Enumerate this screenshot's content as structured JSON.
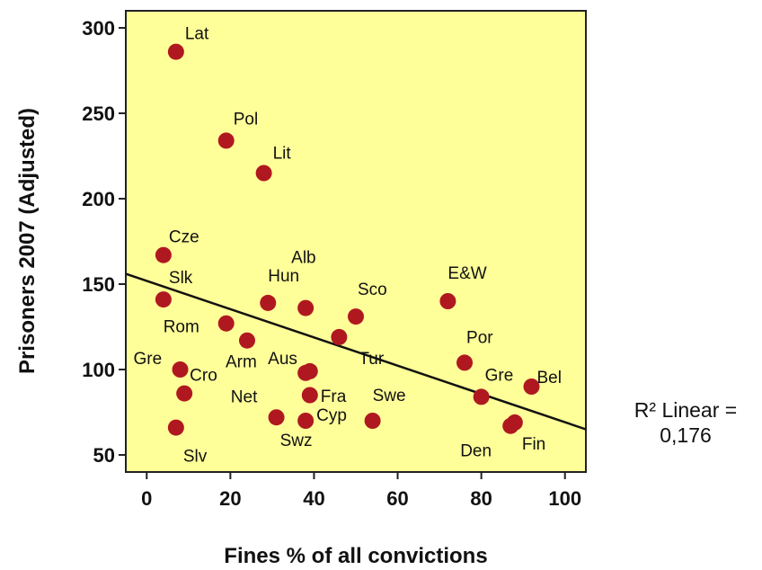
{
  "chart_data": {
    "type": "scatter",
    "xlabel": "Fines % of all convictions",
    "ylabel": "Prisoners 2007 (Adjusted)",
    "xlim": [
      -5,
      105
    ],
    "ylim": [
      40,
      310
    ],
    "x_ticks": [
      0,
      20,
      40,
      60,
      80,
      100
    ],
    "y_ticks": [
      50,
      100,
      150,
      200,
      250,
      300
    ],
    "grid": false,
    "plot_background": "#ffff99",
    "point_color": "#b01820",
    "points": [
      {
        "label": "Lat",
        "x": 7,
        "y": 286
      },
      {
        "label": "Pol",
        "x": 19,
        "y": 234
      },
      {
        "label": "Lit",
        "x": 28,
        "y": 215
      },
      {
        "label": "Cze",
        "x": 4,
        "y": 167
      },
      {
        "label": "Slk",
        "x": 4,
        "y": 141
      },
      {
        "label": "Alb",
        "x": 38,
        "y": 136
      },
      {
        "label": "Hun",
        "x": 29,
        "y": 139
      },
      {
        "label": "Sco",
        "x": 50,
        "y": 131
      },
      {
        "label": "E&W",
        "x": 72,
        "y": 140
      },
      {
        "label": "Rom",
        "x": 19,
        "y": 127
      },
      {
        "label": "Arm",
        "x": 24,
        "y": 117
      },
      {
        "label": "Aus",
        "x": 38,
        "y": 98
      },
      {
        "label": "Tur",
        "x": 46,
        "y": 119
      },
      {
        "label": "Por",
        "x": 76,
        "y": 104
      },
      {
        "label": "Gre",
        "x": 8,
        "y": 100
      },
      {
        "label": "Cro",
        "x": 9,
        "y": 86
      },
      {
        "label": "Fra",
        "x": 39,
        "y": 99
      },
      {
        "label": "Gre",
        "x": 80,
        "y": 84
      },
      {
        "label": "Bel",
        "x": 92,
        "y": 90
      },
      {
        "label": "Net",
        "x": 39,
        "y": 85
      },
      {
        "label": "Cyp",
        "x": 38,
        "y": 70
      },
      {
        "label": "Swe",
        "x": 54,
        "y": 70
      },
      {
        "label": "Swz",
        "x": 31,
        "y": 72
      },
      {
        "label": "Slv",
        "x": 7,
        "y": 66
      },
      {
        "label": "Den",
        "x": 87,
        "y": 67
      },
      {
        "label": "Fin",
        "x": 88,
        "y": 69
      }
    ],
    "fit_line": {
      "x": [
        -5,
        105
      ],
      "y": [
        156,
        65
      ]
    },
    "annotation": "R² Linear = 0,176"
  }
}
